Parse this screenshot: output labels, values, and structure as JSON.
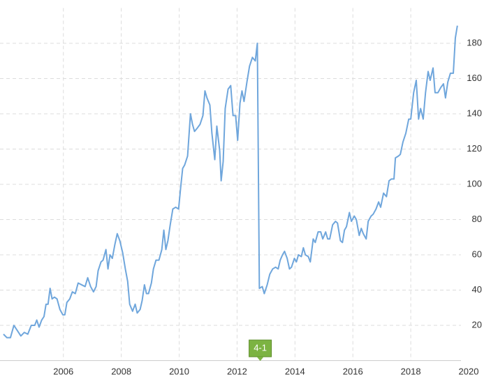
{
  "chart_data": {
    "type": "line",
    "x": [
      2003.93,
      2004.05,
      2004.17,
      2004.29,
      2004.41,
      2004.53,
      2004.65,
      2004.77,
      2004.89,
      2005.01,
      2005.08,
      2005.16,
      2005.25,
      2005.33,
      2005.4,
      2005.47,
      2005.54,
      2005.61,
      2005.69,
      2005.78,
      2005.88,
      2005.98,
      2006.05,
      2006.12,
      2006.22,
      2006.31,
      2006.41,
      2006.51,
      2006.63,
      2006.75,
      2006.84,
      2006.94,
      2007.04,
      2007.13,
      2007.2,
      2007.3,
      2007.37,
      2007.47,
      2007.54,
      2007.61,
      2007.69,
      2007.78,
      2007.86,
      2007.95,
      2008.05,
      2008.14,
      2008.22,
      2008.29,
      2008.39,
      2008.48,
      2008.55,
      2008.65,
      2008.72,
      2008.8,
      2008.87,
      2008.94,
      2009.04,
      2009.11,
      2009.2,
      2009.3,
      2009.4,
      2009.47,
      2009.54,
      2009.61,
      2009.69,
      2009.78,
      2009.88,
      2009.98,
      2010.05,
      2010.12,
      2010.19,
      2010.29,
      2010.39,
      2010.46,
      2010.53,
      2010.63,
      2010.72,
      2010.82,
      2010.89,
      2010.96,
      2011.06,
      2011.13,
      2011.23,
      2011.3,
      2011.4,
      2011.45,
      2011.52,
      2011.59,
      2011.69,
      2011.78,
      2011.86,
      2011.95,
      2012.02,
      2012.1,
      2012.17,
      2012.24,
      2012.34,
      2012.43,
      2012.53,
      2012.63,
      2012.7,
      2012.77,
      2012.87,
      2012.94,
      2013.04,
      2013.13,
      2013.23,
      2013.33,
      2013.42,
      2013.49,
      2013.57,
      2013.64,
      2013.73,
      2013.81,
      2013.88,
      2013.98,
      2014.05,
      2014.12,
      2014.22,
      2014.29,
      2014.36,
      2014.46,
      2014.53,
      2014.63,
      2014.7,
      2014.8,
      2014.89,
      2014.96,
      2015.06,
      2015.13,
      2015.2,
      2015.3,
      2015.4,
      2015.47,
      2015.57,
      2015.64,
      2015.71,
      2015.78,
      2015.88,
      2015.95,
      2016.05,
      2016.12,
      2016.22,
      2016.29,
      2016.36,
      2016.46,
      2016.53,
      2016.63,
      2016.7,
      2016.8,
      2016.89,
      2016.96,
      2017.06,
      2017.16,
      2017.25,
      2017.33,
      2017.42,
      2017.47,
      2017.57,
      2017.64,
      2017.73,
      2017.83,
      2017.93,
      2018.0,
      2018.1,
      2018.19,
      2018.27,
      2018.34,
      2018.43,
      2018.51,
      2018.6,
      2018.67,
      2018.77,
      2018.84,
      2018.94,
      2019.04,
      2019.13,
      2019.2,
      2019.28,
      2019.37,
      2019.47,
      2019.54,
      2019.61
    ],
    "series": [
      {
        "color": "#6fa6dc",
        "values": [
          15,
          13,
          13,
          20,
          17,
          14,
          16,
          15,
          20,
          20,
          23,
          19,
          23,
          25,
          32,
          32,
          41,
          35,
          36,
          35,
          29,
          26,
          26,
          33,
          35,
          39,
          38,
          44,
          43,
          42,
          47,
          42,
          39,
          42,
          51,
          56,
          57,
          63,
          52,
          60,
          58,
          66,
          72,
          68,
          61,
          52,
          45,
          32,
          28,
          32,
          27,
          29,
          34,
          43,
          38,
          38,
          44,
          52,
          57,
          57,
          63,
          74,
          63,
          68,
          77,
          86,
          87,
          86,
          98,
          109,
          111,
          116,
          140,
          134,
          130,
          132,
          134,
          139,
          153,
          149,
          145,
          129,
          114,
          133,
          119,
          102,
          113,
          143,
          154,
          156,
          139,
          139,
          125,
          146,
          153,
          147,
          158,
          167,
          172,
          170,
          180,
          41,
          42,
          38,
          43,
          49,
          52,
          53,
          52,
          57,
          60,
          62,
          58,
          52,
          53,
          58,
          56,
          60,
          59,
          64,
          60,
          59,
          56,
          69,
          67,
          73,
          73,
          69,
          73,
          69,
          69,
          77,
          79,
          78,
          68,
          67,
          74,
          76,
          84,
          79,
          82,
          80,
          71,
          75,
          72,
          69,
          79,
          82,
          83,
          86,
          90,
          87,
          95,
          93,
          102,
          103,
          103,
          115,
          116,
          117,
          124,
          129,
          137,
          137,
          152,
          159,
          137,
          143,
          137,
          152,
          164,
          159,
          166,
          152,
          152,
          155,
          157,
          149,
          158,
          163,
          163,
          183,
          190
        ]
      }
    ],
    "xlim": [
      2003.81,
      2020
    ],
    "ylim": [
      0,
      200
    ],
    "xticks": [
      2006,
      2008,
      2010,
      2012,
      2014,
      2016,
      2018,
      2020
    ],
    "yticks": [
      20,
      40,
      60,
      80,
      100,
      120,
      140,
      160,
      180
    ],
    "grid": true,
    "annotations": [
      {
        "x": 2012.8,
        "text": "4-1",
        "color": "#7cb342"
      }
    ]
  }
}
